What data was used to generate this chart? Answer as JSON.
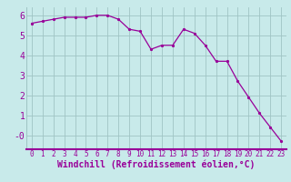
{
  "x": [
    0,
    1,
    2,
    3,
    4,
    5,
    6,
    7,
    8,
    9,
    10,
    11,
    12,
    13,
    14,
    15,
    16,
    17,
    18,
    19,
    20,
    21,
    22,
    23
  ],
  "y": [
    5.6,
    5.7,
    5.8,
    5.9,
    5.9,
    5.9,
    6.0,
    6.0,
    5.8,
    5.3,
    5.2,
    4.3,
    4.5,
    4.5,
    5.3,
    5.1,
    4.5,
    3.7,
    3.7,
    2.7,
    1.9,
    1.1,
    0.4,
    -0.3
  ],
  "line_color": "#990099",
  "marker": ".",
  "marker_size": 3,
  "background_color": "#c8eaea",
  "grid_color": "#a0c4c4",
  "xlabel": "Windchill (Refroidissement éolien,°C)",
  "xlabel_color": "#990099",
  "ytick_labels": [
    "-0",
    "1",
    "2",
    "3",
    "4",
    "5",
    "6"
  ],
  "ytick_vals": [
    0.0,
    1.0,
    2.0,
    3.0,
    4.0,
    5.0,
    6.0
  ],
  "xtick_labels": [
    "0",
    "1",
    "2",
    "3",
    "4",
    "5",
    "6",
    "7",
    "8",
    "9",
    "10",
    "11",
    "12",
    "13",
    "14",
    "15",
    "16",
    "17",
    "18",
    "19",
    "20",
    "21",
    "22",
    "23"
  ],
  "ylim": [
    -0.7,
    6.4
  ],
  "xlim": [
    -0.5,
    23.5
  ],
  "font_size_xlabel": 7,
  "font_size_ytick": 7,
  "font_size_xtick": 5.5,
  "xlabel_bold": true
}
